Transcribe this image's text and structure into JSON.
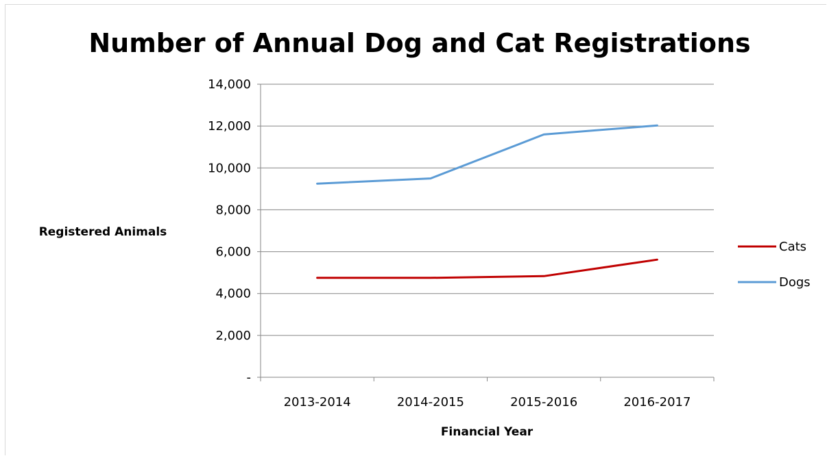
{
  "chart_data": {
    "type": "line",
    "title": "Number of Annual Dog and Cat Registrations",
    "xlabel": "Financial Year",
    "ylabel": "Registered Animals",
    "categories": [
      "2013-2014",
      "2014-2015",
      "2015-2016",
      "2016-2017"
    ],
    "ylim": [
      0,
      14000
    ],
    "yticks": [
      0,
      2000,
      4000,
      6000,
      8000,
      10000,
      12000,
      14000
    ],
    "ytick_labels": [
      "-",
      "2,000",
      "4,000",
      "6,000",
      "8,000",
      "10,000",
      "12,000",
      "14,000"
    ],
    "grid": true,
    "legend_position": "right",
    "series": [
      {
        "name": "Cats",
        "color": "#c00000",
        "values": [
          4750,
          4750,
          4830,
          5620
        ]
      },
      {
        "name": "Dogs",
        "color": "#5b9bd5",
        "values": [
          9250,
          9500,
          11600,
          12030
        ]
      }
    ]
  },
  "colors": {
    "gridline": "#868686",
    "axis": "#868686"
  }
}
